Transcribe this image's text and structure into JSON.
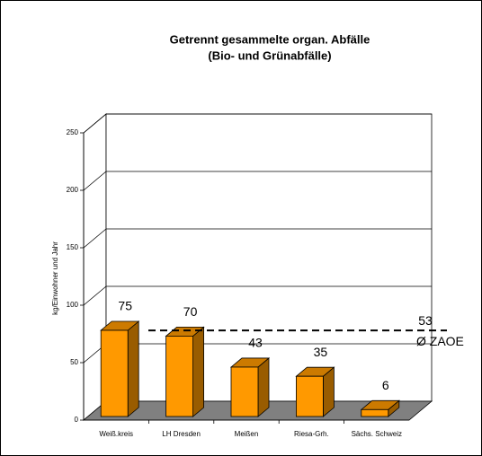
{
  "chart_data": {
    "type": "bar3d",
    "title": [
      "Getrennt gesammelte organ. Abfälle",
      "(Bio- und Grünabfälle)"
    ],
    "ylabel": "kg/Einwohner und Jahr",
    "categories": [
      "Weiß.kreis",
      "LH Dresden",
      "Meißen",
      "Riesa-Grh.",
      "Sächs. Schweiz"
    ],
    "values": [
      75,
      70,
      43,
      35,
      6
    ],
    "color": "#ff9900",
    "ylim": [
      0,
      250
    ],
    "yticks": [
      0,
      50,
      100,
      150,
      200,
      250
    ],
    "grid": true,
    "average": {
      "value": 53,
      "label": "Ø ZAOE"
    }
  }
}
